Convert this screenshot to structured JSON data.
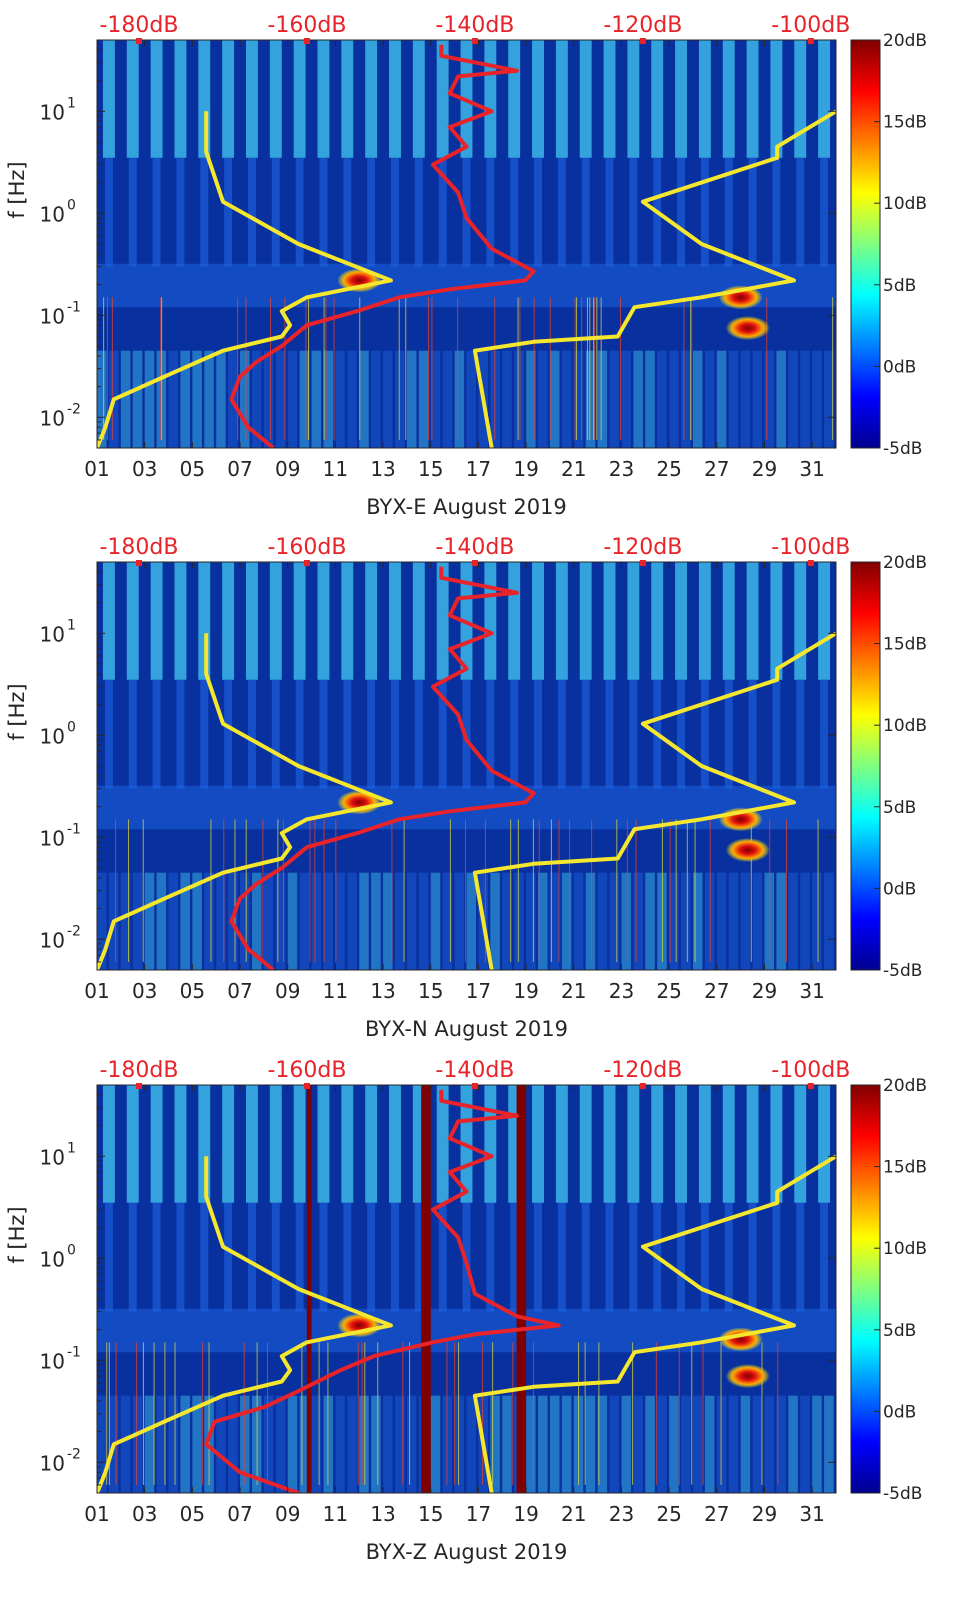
{
  "colors": {
    "band_low": "#1e63e0",
    "band_high": "#42c8f2",
    "background": "#08309e",
    "min_line": "#f5e62e",
    "max_line": "#f5e62e",
    "median_line": "#e8232a",
    "top_axis_text": "#e8232a",
    "axis": "#262626",
    "data_gap": "#7f0000"
  },
  "colorbar": {
    "ticks": [
      "20dB",
      "15dB",
      "10dB",
      "5dB",
      "0dB",
      "-5dB"
    ],
    "range_db": [
      -5,
      20
    ]
  },
  "chart_data": [
    {
      "type": "heatmap",
      "title": "",
      "xlabel": "BYX-E August 2019",
      "ylabel": "f [Hz]",
      "x_range_days": [
        1,
        32
      ],
      "y_range_hz": [
        0.005,
        50
      ],
      "y_scale": "log",
      "x_tick_labels": [
        "01",
        "03",
        "05",
        "07",
        "09",
        "11",
        "13",
        "15",
        "17",
        "19",
        "21",
        "23",
        "25",
        "27",
        "29",
        "31"
      ],
      "y_tick_labels": [
        "10",
        "10",
        "10",
        "10"
      ],
      "y_tick_exponents": [
        "1",
        "0",
        "-1",
        "-2"
      ],
      "top_axis_labels": [
        "-180dB",
        "-160dB",
        "-140dB",
        "-120dB",
        "-100dB"
      ],
      "top_axis_range_db": [
        -185,
        -97
      ],
      "colorbar_db": [
        -5,
        20
      ],
      "hot_spots": [
        {
          "day": 12,
          "freq_hz": 0.22,
          "db": 16
        },
        {
          "day": 28,
          "freq_hz": 0.15,
          "db": 18
        },
        {
          "day": 28.3,
          "freq_hz": 0.075,
          "db": 13
        }
      ],
      "data_gaps_days": [],
      "series": [
        {
          "name": "min",
          "db": [
            -185,
            -184,
            -183,
            -177,
            -170,
            -163,
            -162,
            -163,
            -160,
            -150,
            -161,
            -170,
            -172,
            -172
          ],
          "freq_hz": [
            0.005,
            0.008,
            0.015,
            0.025,
            0.045,
            0.062,
            0.08,
            0.11,
            0.15,
            0.22,
            0.5,
            1.3,
            4.0,
            10.0
          ]
        },
        {
          "name": "max",
          "db": [
            -138,
            -139,
            -140,
            -133,
            -123,
            -121,
            -113,
            -102,
            -113,
            -120,
            -104,
            -104,
            -97
          ],
          "freq_hz": [
            0.005,
            0.015,
            0.045,
            0.055,
            0.062,
            0.12,
            0.15,
            0.22,
            0.5,
            1.3,
            3.5,
            4.5,
            10.0
          ]
        },
        {
          "name": "median",
          "db": [
            -164,
            -167,
            -169,
            -168,
            -166,
            -163,
            -160,
            -154,
            -149,
            -143,
            -134,
            -133,
            -138,
            -141,
            -142,
            -145,
            -141,
            -143,
            -138,
            -143,
            -142,
            -135,
            -144,
            -144
          ],
          "freq_hz": [
            0.005,
            0.008,
            0.015,
            0.025,
            0.035,
            0.05,
            0.08,
            0.11,
            0.15,
            0.18,
            0.22,
            0.27,
            0.45,
            0.9,
            1.6,
            3.0,
            4.5,
            7.0,
            10.0,
            15.0,
            22.0,
            25.0,
            35.0,
            45.0
          ]
        }
      ]
    },
    {
      "type": "heatmap",
      "title": "",
      "xlabel": "BYX-N August 2019",
      "ylabel": "f [Hz]",
      "x_range_days": [
        1,
        32
      ],
      "y_range_hz": [
        0.005,
        50
      ],
      "y_scale": "log",
      "x_tick_labels": [
        "01",
        "03",
        "05",
        "07",
        "09",
        "11",
        "13",
        "15",
        "17",
        "19",
        "21",
        "23",
        "25",
        "27",
        "29",
        "31"
      ],
      "y_tick_labels": [
        "10",
        "10",
        "10",
        "10"
      ],
      "y_tick_exponents": [
        "1",
        "0",
        "-1",
        "-2"
      ],
      "top_axis_labels": [
        "-180dB",
        "-160dB",
        "-140dB",
        "-120dB",
        "-100dB"
      ],
      "top_axis_range_db": [
        -185,
        -97
      ],
      "colorbar_db": [
        -5,
        20
      ],
      "hot_spots": [
        {
          "day": 12,
          "freq_hz": 0.22,
          "db": 15
        },
        {
          "day": 28,
          "freq_hz": 0.15,
          "db": 18
        },
        {
          "day": 28.3,
          "freq_hz": 0.075,
          "db": 12
        }
      ],
      "data_gaps_days": [],
      "series": [
        {
          "name": "min",
          "db": [
            -185,
            -184,
            -183,
            -177,
            -170,
            -163,
            -162,
            -163,
            -160,
            -150,
            -161,
            -170,
            -172,
            -172
          ],
          "freq_hz": [
            0.005,
            0.008,
            0.015,
            0.025,
            0.045,
            0.062,
            0.08,
            0.11,
            0.15,
            0.22,
            0.5,
            1.3,
            4.0,
            10.0
          ]
        },
        {
          "name": "max",
          "db": [
            -138,
            -139,
            -140,
            -133,
            -123,
            -121,
            -113,
            -102,
            -113,
            -120,
            -104,
            -104,
            -97
          ],
          "freq_hz": [
            0.005,
            0.015,
            0.045,
            0.055,
            0.062,
            0.12,
            0.15,
            0.22,
            0.5,
            1.3,
            3.5,
            4.5,
            10.0
          ]
        },
        {
          "name": "median",
          "db": [
            -164,
            -167,
            -169,
            -168,
            -166,
            -163,
            -160,
            -154,
            -149,
            -143,
            -134,
            -133,
            -138,
            -141,
            -142,
            -145,
            -141,
            -143,
            -138,
            -143,
            -142,
            -135,
            -144,
            -144
          ],
          "freq_hz": [
            0.005,
            0.008,
            0.015,
            0.025,
            0.035,
            0.05,
            0.08,
            0.11,
            0.15,
            0.18,
            0.22,
            0.27,
            0.45,
            0.9,
            1.6,
            3.0,
            4.5,
            7.0,
            10.0,
            15.0,
            22.0,
            25.0,
            35.0,
            45.0
          ]
        }
      ]
    },
    {
      "type": "heatmap",
      "title": "",
      "xlabel": "BYX-Z August 2019",
      "ylabel": "f [Hz]",
      "x_range_days": [
        1,
        32
      ],
      "y_range_hz": [
        0.005,
        50
      ],
      "y_scale": "log",
      "x_tick_labels": [
        "01",
        "03",
        "05",
        "07",
        "09",
        "11",
        "13",
        "15",
        "17",
        "19",
        "21",
        "23",
        "25",
        "27",
        "29",
        "31"
      ],
      "y_tick_labels": [
        "10",
        "10",
        "10",
        "10"
      ],
      "y_tick_exponents": [
        "1",
        "0",
        "-1",
        "-2"
      ],
      "top_axis_labels": [
        "-180dB",
        "-160dB",
        "-140dB",
        "-120dB",
        "-100dB"
      ],
      "top_axis_range_db": [
        -185,
        -97
      ],
      "colorbar_db": [
        -5,
        20
      ],
      "hot_spots": [
        {
          "day": 12,
          "freq_hz": 0.22,
          "db": 16
        },
        {
          "day": 28,
          "freq_hz": 0.16,
          "db": 18
        },
        {
          "day": 28.3,
          "freq_hz": 0.07,
          "db": 12
        }
      ],
      "data_gaps_days": [
        [
          9.8,
          10.0
        ],
        [
          14.6,
          15.0
        ],
        [
          18.6,
          19.0
        ]
      ],
      "series": [
        {
          "name": "min",
          "db": [
            -185,
            -184,
            -183,
            -177,
            -170,
            -163,
            -162,
            -163,
            -160,
            -150,
            -161,
            -170,
            -172,
            -172
          ],
          "freq_hz": [
            0.005,
            0.008,
            0.015,
            0.025,
            0.045,
            0.062,
            0.08,
            0.11,
            0.15,
            0.22,
            0.5,
            1.3,
            4.0,
            10.0
          ]
        },
        {
          "name": "max",
          "db": [
            -138,
            -139,
            -140,
            -133,
            -123,
            -121,
            -113,
            -102,
            -113,
            -120,
            -104,
            -104,
            -97
          ],
          "freq_hz": [
            0.005,
            0.015,
            0.045,
            0.055,
            0.062,
            0.12,
            0.15,
            0.22,
            0.5,
            1.3,
            3.5,
            4.5,
            10.0
          ]
        },
        {
          "name": "median",
          "db": [
            -161,
            -168,
            -172,
            -171,
            -165,
            -161,
            -156,
            -152,
            -145,
            -140,
            -130,
            -135,
            -140,
            -141,
            -142,
            -145,
            -141,
            -143,
            -138,
            -143,
            -142,
            -135,
            -144,
            -144
          ],
          "freq_hz": [
            0.005,
            0.008,
            0.015,
            0.025,
            0.035,
            0.05,
            0.08,
            0.11,
            0.15,
            0.18,
            0.22,
            0.27,
            0.45,
            0.9,
            1.6,
            3.0,
            4.5,
            7.0,
            10.0,
            15.0,
            22.0,
            25.0,
            35.0,
            45.0
          ]
        }
      ]
    }
  ]
}
